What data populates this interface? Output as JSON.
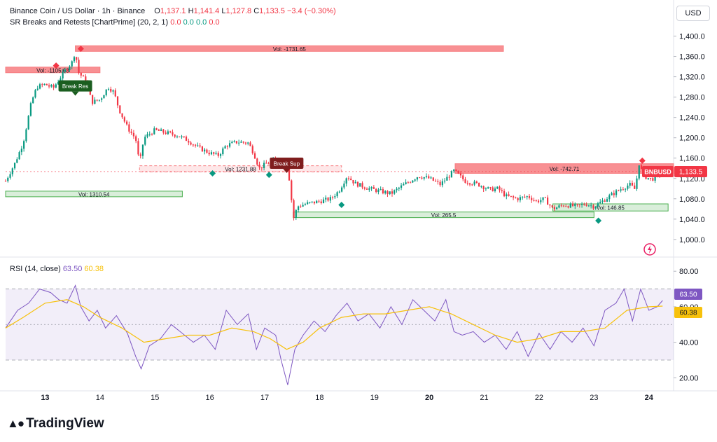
{
  "header": {
    "symbol": "Binance Coin / US Dollar · 1h · Binance",
    "o_label": "O",
    "o_value": "1,137.1",
    "h_label": "H",
    "h_value": "1,141.4",
    "l_label": "L",
    "l_value": "1,127.8",
    "c_label": "C",
    "c_value": "1,133.5",
    "change": "−3.4 (−0.30%)",
    "indicator": "SR Breaks and Retests [ChartPrime] (20, 2, 1)",
    "indicator_values": [
      "0.0",
      "0.0",
      "0.0",
      "0.0"
    ]
  },
  "currency": "USD",
  "rsi_legend": {
    "label": "RSI (14, close)",
    "rsi": "63.50",
    "ma": "60.38"
  },
  "brand": "TradingView",
  "colors": {
    "up": "#089981",
    "down": "#f23645",
    "rsi": "#7e57c2",
    "rsi_ma": "#f7c10b",
    "resistance": "#f77c80",
    "support": "#81c784"
  },
  "chart_data": [
    {
      "type": "candlestick",
      "title": "Binance Coin / US Dollar · 1h · Binance",
      "x_ticks": [
        "13",
        "14",
        "15",
        "16",
        "17",
        "18",
        "19",
        "20",
        "21",
        "22",
        "23",
        "24"
      ],
      "x_tick_values": [
        1,
        2,
        3,
        4,
        5,
        6,
        7,
        8,
        9,
        10,
        11,
        12
      ],
      "x_range": [
        0.28,
        12.45
      ],
      "y_ticks": [
        "1,400.0",
        "1,360.0",
        "1,320.0",
        "1,280.0",
        "1,240.0",
        "1,200.0",
        "1,160.0",
        "1,120.0",
        "1,080.0",
        "1,040.0",
        "1,000.0"
      ],
      "ylim": [
        975,
        1420
      ],
      "last_price": 1133.5,
      "price_label": "BNBUSD",
      "price_value": "1,133.5",
      "path": [
        [
          0.28,
          1115
        ],
        [
          0.45,
          1150
        ],
        [
          0.6,
          1190
        ],
        [
          0.75,
          1270
        ],
        [
          0.85,
          1300
        ],
        [
          1.0,
          1305
        ],
        [
          1.15,
          1298
        ],
        [
          1.35,
          1330
        ],
        [
          1.5,
          1350
        ],
        [
          1.55,
          1372
        ],
        [
          1.6,
          1330
        ],
        [
          1.75,
          1310
        ],
        [
          1.85,
          1270
        ],
        [
          2.0,
          1275
        ],
        [
          2.15,
          1300
        ],
        [
          2.25,
          1290
        ],
        [
          2.35,
          1255
        ],
        [
          2.5,
          1220
        ],
        [
          2.65,
          1198
        ],
        [
          2.72,
          1148
        ],
        [
          2.8,
          1200
        ],
        [
          3.0,
          1215
        ],
        [
          3.2,
          1210
        ],
        [
          3.4,
          1205
        ],
        [
          3.6,
          1195
        ],
        [
          3.8,
          1180
        ],
        [
          4.0,
          1170
        ],
        [
          4.15,
          1165
        ],
        [
          4.3,
          1185
        ],
        [
          4.5,
          1192
        ],
        [
          4.7,
          1190
        ],
        [
          4.8,
          1170
        ],
        [
          4.9,
          1140
        ],
        [
          5.0,
          1147
        ],
        [
          5.15,
          1155
        ],
        [
          5.3,
          1150
        ],
        [
          5.42,
          1142
        ],
        [
          5.47,
          1100
        ],
        [
          5.52,
          1040
        ],
        [
          5.6,
          1065
        ],
        [
          5.75,
          1070
        ],
        [
          6.0,
          1075
        ],
        [
          6.2,
          1080
        ],
        [
          6.35,
          1095
        ],
        [
          6.5,
          1125
        ],
        [
          6.65,
          1110
        ],
        [
          6.9,
          1100
        ],
        [
          7.1,
          1095
        ],
        [
          7.3,
          1090
        ],
        [
          7.5,
          1105
        ],
        [
          7.65,
          1115
        ],
        [
          7.8,
          1125
        ],
        [
          8.0,
          1120
        ],
        [
          8.2,
          1108
        ],
        [
          8.45,
          1135
        ],
        [
          8.65,
          1115
        ],
        [
          8.9,
          1108
        ],
        [
          9.1,
          1098
        ],
        [
          9.25,
          1100
        ],
        [
          9.4,
          1085
        ],
        [
          9.6,
          1080
        ],
        [
          9.8,
          1085
        ],
        [
          9.95,
          1075
        ],
        [
          10.1,
          1080
        ],
        [
          10.25,
          1060
        ],
        [
          10.45,
          1068
        ],
        [
          10.7,
          1065
        ],
        [
          10.85,
          1070
        ],
        [
          11.0,
          1065
        ],
        [
          11.15,
          1075
        ],
        [
          11.35,
          1090
        ],
        [
          11.5,
          1100
        ],
        [
          11.65,
          1108
        ],
        [
          11.75,
          1098
        ],
        [
          11.82,
          1150
        ],
        [
          11.9,
          1125
        ],
        [
          12.05,
          1118
        ],
        [
          12.25,
          1133.5
        ]
      ],
      "zones": [
        {
          "kind": "resistance",
          "label": "Vol: -1731.65",
          "from": 1.55,
          "to": 9.35,
          "low": 1370,
          "high": 1381
        },
        {
          "kind": "resistance",
          "label": "Vol: -1105.68",
          "from": 0.28,
          "to": 2.0,
          "low": 1328,
          "high": 1339
        },
        {
          "kind": "resistance-retest",
          "label": "Vol: 1231.88",
          "from": 2.72,
          "to": 6.4,
          "low": 1133,
          "high": 1145
        },
        {
          "kind": "support",
          "label": "Vol: 1310.54",
          "from": 0.28,
          "to": 3.5,
          "low": 1084,
          "high": 1095
        },
        {
          "kind": "support",
          "label": "Vol: 265.5",
          "from": 5.52,
          "to": 11.0,
          "low": 1043,
          "high": 1054
        },
        {
          "kind": "resistance",
          "label": "Vol: -742.71",
          "from": 8.47,
          "to": 12.45,
          "low": 1130,
          "high": 1149
        },
        {
          "kind": "support",
          "label": "Vol: 146.85",
          "from": 10.25,
          "to": 12.35,
          "low": 1056,
          "high": 1070
        }
      ],
      "signals": [
        {
          "type": "break-label",
          "text": "Break Res",
          "x": 1.55,
          "y": 1302
        },
        {
          "type": "break-label",
          "text": "Break Sup",
          "x": 5.4,
          "y": 1150
        },
        {
          "type": "bear-diamond",
          "x": 1.2,
          "y": 1342
        },
        {
          "type": "bear-diamond",
          "x": 1.65,
          "y": 1375
        },
        {
          "type": "bear-diamond",
          "x": 11.88,
          "y": 1155
        },
        {
          "type": "bull-diamond",
          "x": 4.05,
          "y": 1130
        },
        {
          "type": "bull-diamond",
          "x": 5.08,
          "y": 1127
        },
        {
          "type": "bull-diamond",
          "x": 6.4,
          "y": 1068
        },
        {
          "type": "bull-diamond",
          "x": 11.08,
          "y": 1037
        }
      ]
    },
    {
      "type": "line",
      "title": "RSI (14, close)",
      "ylim": [
        15,
        86
      ],
      "y_ticks": [
        "80.00",
        "60.00",
        "40.00",
        "20.00"
      ],
      "band": [
        30,
        70
      ],
      "series": [
        {
          "name": "RSI",
          "color": "#7e57c2",
          "last": "63.50",
          "points": [
            [
              0.28,
              48
            ],
            [
              0.5,
              58
            ],
            [
              0.7,
              62
            ],
            [
              0.9,
              70
            ],
            [
              1.1,
              68
            ],
            [
              1.25,
              64
            ],
            [
              1.4,
              62
            ],
            [
              1.55,
              72
            ],
            [
              1.65,
              60
            ],
            [
              1.8,
              52
            ],
            [
              1.95,
              58
            ],
            [
              2.1,
              48
            ],
            [
              2.3,
              55
            ],
            [
              2.5,
              45
            ],
            [
              2.65,
              32
            ],
            [
              2.75,
              25
            ],
            [
              2.9,
              38
            ],
            [
              3.1,
              42
            ],
            [
              3.3,
              50
            ],
            [
              3.5,
              45
            ],
            [
              3.7,
              40
            ],
            [
              3.9,
              44
            ],
            [
              4.1,
              36
            ],
            [
              4.3,
              58
            ],
            [
              4.5,
              50
            ],
            [
              4.7,
              56
            ],
            [
              4.85,
              36
            ],
            [
              5.0,
              48
            ],
            [
              5.2,
              44
            ],
            [
              5.3,
              30
            ],
            [
              5.42,
              16
            ],
            [
              5.55,
              36
            ],
            [
              5.7,
              44
            ],
            [
              5.9,
              52
            ],
            [
              6.1,
              46
            ],
            [
              6.3,
              55
            ],
            [
              6.5,
              62
            ],
            [
              6.7,
              52
            ],
            [
              6.9,
              56
            ],
            [
              7.1,
              48
            ],
            [
              7.3,
              60
            ],
            [
              7.5,
              50
            ],
            [
              7.7,
              64
            ],
            [
              7.9,
              58
            ],
            [
              8.1,
              52
            ],
            [
              8.3,
              64
            ],
            [
              8.45,
              46
            ],
            [
              8.6,
              44
            ],
            [
              8.8,
              46
            ],
            [
              9.0,
              40
            ],
            [
              9.2,
              44
            ],
            [
              9.4,
              36
            ],
            [
              9.6,
              46
            ],
            [
              9.8,
              32
            ],
            [
              10.0,
              45
            ],
            [
              10.2,
              36
            ],
            [
              10.4,
              46
            ],
            [
              10.6,
              40
            ],
            [
              10.8,
              48
            ],
            [
              11.0,
              38
            ],
            [
              11.2,
              58
            ],
            [
              11.4,
              62
            ],
            [
              11.55,
              70
            ],
            [
              11.7,
              52
            ],
            [
              11.85,
              70
            ],
            [
              12.0,
              58
            ],
            [
              12.15,
              60
            ],
            [
              12.25,
              63.5
            ]
          ]
        },
        {
          "name": "RSI MA",
          "color": "#f7c10b",
          "last": "60.38",
          "points": [
            [
              0.28,
              48
            ],
            [
              0.6,
              54
            ],
            [
              1.0,
              62
            ],
            [
              1.4,
              64
            ],
            [
              1.7,
              60
            ],
            [
              2.0,
              54
            ],
            [
              2.4,
              48
            ],
            [
              2.8,
              40
            ],
            [
              3.2,
              42
            ],
            [
              3.6,
              44
            ],
            [
              4.0,
              44
            ],
            [
              4.4,
              48
            ],
            [
              4.8,
              46
            ],
            [
              5.1,
              42
            ],
            [
              5.4,
              36
            ],
            [
              5.7,
              40
            ],
            [
              6.0,
              48
            ],
            [
              6.4,
              54
            ],
            [
              6.8,
              56
            ],
            [
              7.2,
              56
            ],
            [
              7.6,
              58
            ],
            [
              8.0,
              60
            ],
            [
              8.4,
              56
            ],
            [
              8.8,
              50
            ],
            [
              9.2,
              44
            ],
            [
              9.6,
              40
            ],
            [
              10.0,
              42
            ],
            [
              10.4,
              46
            ],
            [
              10.8,
              46
            ],
            [
              11.2,
              48
            ],
            [
              11.6,
              58
            ],
            [
              12.0,
              60
            ],
            [
              12.25,
              60.38
            ]
          ]
        }
      ]
    }
  ]
}
